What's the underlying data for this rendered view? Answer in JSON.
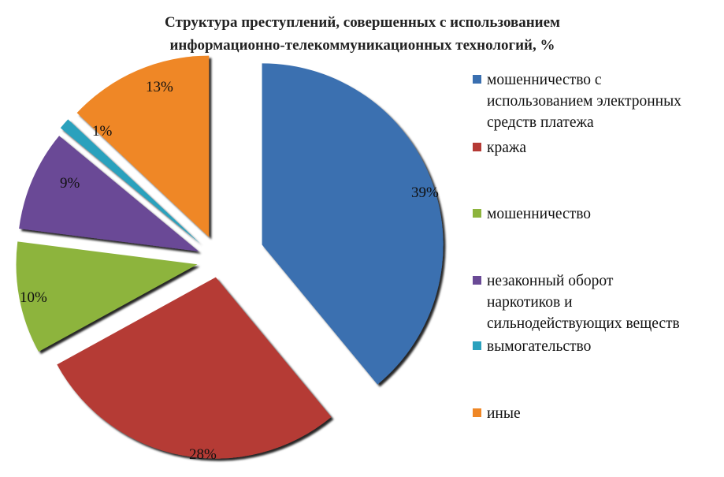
{
  "title": {
    "line1": "Структура преступлений, совершенных с использованием",
    "line2": "информационно-телекоммуникационных технологий, %"
  },
  "chart_data": {
    "type": "pie",
    "title": "Структура преступлений, совершенных с использованием информационно-телекоммуникационных технологий, %",
    "unit": "%",
    "exploded": true,
    "legend_position": "right",
    "slices": [
      {
        "name": "мошенничество с использованием электронных средств платежа",
        "value": 39,
        "label": "39%",
        "color": "#3a6fb0"
      },
      {
        "name": "кража",
        "value": 28,
        "label": "28%",
        "color": "#b53a35"
      },
      {
        "name": "мошенничество",
        "value": 10,
        "label": "10%",
        "color": "#8db43d"
      },
      {
        "name": "незаконный оборот наркотиков и сильнодействующих веществ",
        "value": 9,
        "label": "9%",
        "color": "#6a4a96"
      },
      {
        "name": "вымогательство",
        "value": 1,
        "label": "1%",
        "color": "#2aa1bd"
      },
      {
        "name": "иные",
        "value": 13,
        "label": "13%",
        "color": "#ef8726"
      }
    ]
  },
  "legend": {
    "items": [
      {
        "lines": [
          "мошенничество с",
          "использованием электронных",
          "средств платежа"
        ],
        "color": "#3a6fb0"
      },
      {
        "lines": [
          "кража"
        ],
        "color": "#b53a35"
      },
      {
        "lines": [
          "мошенничество"
        ],
        "color": "#8db43d"
      },
      {
        "lines": [
          "незаконный оборот",
          "наркотиков и",
          "сильнодействующих веществ"
        ],
        "color": "#6a4a96"
      },
      {
        "lines": [
          "вымогательство"
        ],
        "color": "#2aa1bd"
      },
      {
        "lines": [
          "иные"
        ],
        "color": "#ef8726"
      }
    ]
  }
}
